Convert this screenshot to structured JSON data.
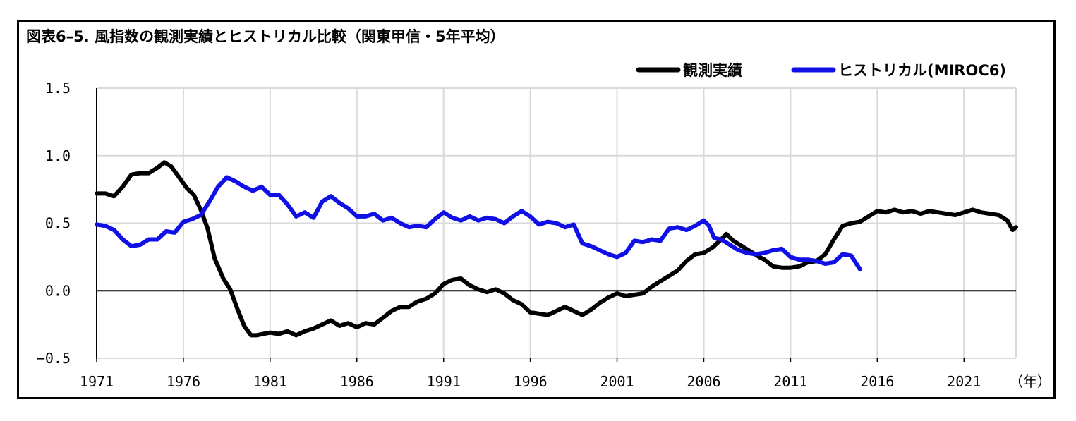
{
  "chart_data": {
    "type": "line",
    "title": "図表6–5. 風指数の観測実績とヒストリカル比較（関東甲信・5年平均）",
    "xlabel": "（年）",
    "ylabel": "",
    "xlim": [
      1971,
      2024
    ],
    "ylim": [
      -0.5,
      1.5
    ],
    "x_ticks": [
      "1971",
      "1976",
      "1981",
      "1986",
      "1991",
      "1996",
      "2001",
      "2006",
      "2011",
      "2016",
      "2021"
    ],
    "y_ticks": [
      "1.5",
      "1.0",
      "0.5",
      "0.0",
      "−0.5"
    ],
    "grid": true,
    "legend_position": "top-right",
    "series": [
      {
        "name": "観測実績",
        "color": "#000000",
        "points": [
          [
            1971.0,
            0.72
          ],
          [
            1971.5,
            0.72
          ],
          [
            1972.0,
            0.7
          ],
          [
            1972.5,
            0.77
          ],
          [
            1973.0,
            0.86
          ],
          [
            1973.5,
            0.87
          ],
          [
            1974.0,
            0.87
          ],
          [
            1974.5,
            0.91
          ],
          [
            1974.9,
            0.95
          ],
          [
            1975.3,
            0.92
          ],
          [
            1975.7,
            0.85
          ],
          [
            1976.2,
            0.76
          ],
          [
            1976.6,
            0.71
          ],
          [
            1977.0,
            0.6
          ],
          [
            1977.4,
            0.46
          ],
          [
            1977.8,
            0.24
          ],
          [
            1978.3,
            0.09
          ],
          [
            1978.7,
            0.01
          ],
          [
            1979.1,
            -0.13
          ],
          [
            1979.5,
            -0.26
          ],
          [
            1979.9,
            -0.33
          ],
          [
            1980.2,
            -0.33
          ],
          [
            1980.6,
            -0.32
          ],
          [
            1981.0,
            -0.31
          ],
          [
            1981.5,
            -0.32
          ],
          [
            1982.0,
            -0.3
          ],
          [
            1982.5,
            -0.33
          ],
          [
            1983.0,
            -0.3
          ],
          [
            1983.5,
            -0.28
          ],
          [
            1984.0,
            -0.25
          ],
          [
            1984.5,
            -0.22
          ],
          [
            1985.0,
            -0.26
          ],
          [
            1985.5,
            -0.24
          ],
          [
            1986.0,
            -0.27
          ],
          [
            1986.5,
            -0.24
          ],
          [
            1987.0,
            -0.25
          ],
          [
            1987.5,
            -0.2
          ],
          [
            1988.0,
            -0.15
          ],
          [
            1988.5,
            -0.12
          ],
          [
            1989.0,
            -0.12
          ],
          [
            1989.5,
            -0.08
          ],
          [
            1990.0,
            -0.06
          ],
          [
            1990.5,
            -0.02
          ],
          [
            1991.0,
            0.05
          ],
          [
            1991.5,
            0.08
          ],
          [
            1992.0,
            0.09
          ],
          [
            1992.5,
            0.04
          ],
          [
            1993.0,
            0.01
          ],
          [
            1993.5,
            -0.01
          ],
          [
            1994.0,
            0.01
          ],
          [
            1994.5,
            -0.02
          ],
          [
            1995.0,
            -0.07
          ],
          [
            1995.5,
            -0.1
          ],
          [
            1996.0,
            -0.16
          ],
          [
            1996.5,
            -0.17
          ],
          [
            1997.0,
            -0.18
          ],
          [
            1997.5,
            -0.15
          ],
          [
            1998.0,
            -0.12
          ],
          [
            1998.5,
            -0.15
          ],
          [
            1999.0,
            -0.18
          ],
          [
            1999.5,
            -0.14
          ],
          [
            2000.0,
            -0.09
          ],
          [
            2000.5,
            -0.05
          ],
          [
            2001.0,
            -0.02
          ],
          [
            2001.5,
            -0.04
          ],
          [
            2002.0,
            -0.03
          ],
          [
            2002.5,
            -0.02
          ],
          [
            2003.0,
            0.03
          ],
          [
            2003.5,
            0.07
          ],
          [
            2004.0,
            0.11
          ],
          [
            2004.5,
            0.15
          ],
          [
            2005.0,
            0.22
          ],
          [
            2005.5,
            0.27
          ],
          [
            2006.0,
            0.28
          ],
          [
            2006.5,
            0.32
          ],
          [
            2007.0,
            0.38
          ],
          [
            2007.3,
            0.42
          ],
          [
            2007.7,
            0.37
          ],
          [
            2008.2,
            0.33
          ],
          [
            2008.7,
            0.29
          ],
          [
            2009.2,
            0.25
          ],
          [
            2009.5,
            0.23
          ],
          [
            2010.0,
            0.18
          ],
          [
            2010.5,
            0.17
          ],
          [
            2011.0,
            0.17
          ],
          [
            2011.5,
            0.18
          ],
          [
            2012.0,
            0.21
          ],
          [
            2012.5,
            0.22
          ],
          [
            2013.0,
            0.27
          ],
          [
            2013.5,
            0.38
          ],
          [
            2014.0,
            0.48
          ],
          [
            2014.5,
            0.5
          ],
          [
            2015.0,
            0.51
          ],
          [
            2015.5,
            0.55
          ],
          [
            2016.0,
            0.59
          ],
          [
            2016.5,
            0.58
          ],
          [
            2017.0,
            0.6
          ],
          [
            2017.5,
            0.58
          ],
          [
            2018.0,
            0.59
          ],
          [
            2018.5,
            0.57
          ],
          [
            2019.0,
            0.59
          ],
          [
            2019.5,
            0.58
          ],
          [
            2020.0,
            0.57
          ],
          [
            2020.5,
            0.56
          ],
          [
            2021.0,
            0.58
          ],
          [
            2021.5,
            0.6
          ],
          [
            2022.0,
            0.58
          ],
          [
            2022.5,
            0.57
          ],
          [
            2023.0,
            0.56
          ],
          [
            2023.5,
            0.52
          ],
          [
            2023.8,
            0.45
          ],
          [
            2024.0,
            0.47
          ]
        ]
      },
      {
        "name": "ヒストリカル(MIROC6)",
        "color": "#1010e6",
        "points": [
          [
            1971.0,
            0.49
          ],
          [
            1971.5,
            0.48
          ],
          [
            1972.0,
            0.45
          ],
          [
            1972.5,
            0.38
          ],
          [
            1973.0,
            0.33
          ],
          [
            1973.5,
            0.34
          ],
          [
            1974.0,
            0.38
          ],
          [
            1974.5,
            0.38
          ],
          [
            1975.0,
            0.44
          ],
          [
            1975.5,
            0.43
          ],
          [
            1976.0,
            0.51
          ],
          [
            1976.5,
            0.53
          ],
          [
            1977.0,
            0.56
          ],
          [
            1977.5,
            0.66
          ],
          [
            1978.0,
            0.77
          ],
          [
            1978.5,
            0.84
          ],
          [
            1979.0,
            0.81
          ],
          [
            1979.5,
            0.77
          ],
          [
            1980.0,
            0.74
          ],
          [
            1980.5,
            0.77
          ],
          [
            1981.0,
            0.71
          ],
          [
            1981.5,
            0.71
          ],
          [
            1982.0,
            0.64
          ],
          [
            1982.5,
            0.55
          ],
          [
            1983.0,
            0.58
          ],
          [
            1983.5,
            0.54
          ],
          [
            1984.0,
            0.66
          ],
          [
            1984.5,
            0.7
          ],
          [
            1985.0,
            0.65
          ],
          [
            1985.5,
            0.61
          ],
          [
            1986.0,
            0.55
          ],
          [
            1986.5,
            0.55
          ],
          [
            1987.0,
            0.57
          ],
          [
            1987.5,
            0.52
          ],
          [
            1988.0,
            0.54
          ],
          [
            1988.5,
            0.5
          ],
          [
            1989.0,
            0.47
          ],
          [
            1989.5,
            0.48
          ],
          [
            1990.0,
            0.47
          ],
          [
            1990.5,
            0.53
          ],
          [
            1991.0,
            0.58
          ],
          [
            1991.5,
            0.54
          ],
          [
            1992.0,
            0.52
          ],
          [
            1992.5,
            0.55
          ],
          [
            1993.0,
            0.52
          ],
          [
            1993.5,
            0.54
          ],
          [
            1994.0,
            0.53
          ],
          [
            1994.5,
            0.5
          ],
          [
            1995.0,
            0.55
          ],
          [
            1995.5,
            0.59
          ],
          [
            1996.0,
            0.55
          ],
          [
            1996.5,
            0.49
          ],
          [
            1997.0,
            0.51
          ],
          [
            1997.5,
            0.5
          ],
          [
            1998.0,
            0.47
          ],
          [
            1998.5,
            0.49
          ],
          [
            1999.0,
            0.35
          ],
          [
            1999.5,
            0.33
          ],
          [
            2000.0,
            0.3
          ],
          [
            2000.5,
            0.27
          ],
          [
            2001.0,
            0.25
          ],
          [
            2001.5,
            0.28
          ],
          [
            2002.0,
            0.37
          ],
          [
            2002.5,
            0.36
          ],
          [
            2003.0,
            0.38
          ],
          [
            2003.5,
            0.37
          ],
          [
            2004.0,
            0.46
          ],
          [
            2004.5,
            0.47
          ],
          [
            2005.0,
            0.45
          ],
          [
            2005.5,
            0.48
          ],
          [
            2006.0,
            0.52
          ],
          [
            2006.3,
            0.48
          ],
          [
            2006.6,
            0.39
          ],
          [
            2007.0,
            0.38
          ],
          [
            2007.5,
            0.34
          ],
          [
            2008.0,
            0.3
          ],
          [
            2008.5,
            0.28
          ],
          [
            2009.0,
            0.27
          ],
          [
            2009.5,
            0.28
          ],
          [
            2010.0,
            0.3
          ],
          [
            2010.5,
            0.31
          ],
          [
            2011.0,
            0.25
          ],
          [
            2011.5,
            0.23
          ],
          [
            2012.0,
            0.23
          ],
          [
            2012.5,
            0.22
          ],
          [
            2013.0,
            0.2
          ],
          [
            2013.5,
            0.21
          ],
          [
            2014.0,
            0.27
          ],
          [
            2014.5,
            0.26
          ],
          [
            2015.0,
            0.16
          ]
        ]
      }
    ]
  }
}
